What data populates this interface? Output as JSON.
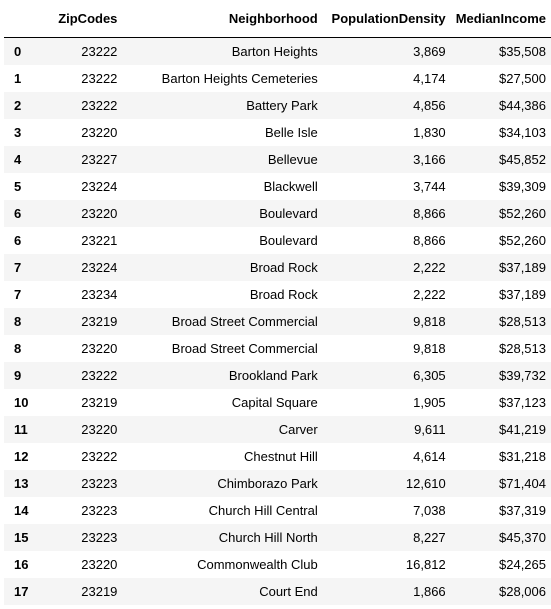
{
  "table": {
    "columns": [
      "",
      "ZipCodes",
      "Neighborhood",
      "PopulationDensity",
      "MedianIncome"
    ],
    "rows": [
      {
        "index": "0",
        "zip": "23222",
        "neighborhood": "Barton Heights",
        "density": "3,869",
        "income": "$35,508"
      },
      {
        "index": "1",
        "zip": "23222",
        "neighborhood": "Barton Heights Cemeteries",
        "density": "4,174",
        "income": "$27,500"
      },
      {
        "index": "2",
        "zip": "23222",
        "neighborhood": "Battery Park",
        "density": "4,856",
        "income": "$44,386"
      },
      {
        "index": "3",
        "zip": "23220",
        "neighborhood": "Belle Isle",
        "density": "1,830",
        "income": "$34,103"
      },
      {
        "index": "4",
        "zip": "23227",
        "neighborhood": "Bellevue",
        "density": "3,166",
        "income": "$45,852"
      },
      {
        "index": "5",
        "zip": "23224",
        "neighborhood": "Blackwell",
        "density": "3,744",
        "income": "$39,309"
      },
      {
        "index": "6",
        "zip": "23220",
        "neighborhood": "Boulevard",
        "density": "8,866",
        "income": "$52,260"
      },
      {
        "index": "6",
        "zip": "23221",
        "neighborhood": "Boulevard",
        "density": "8,866",
        "income": "$52,260"
      },
      {
        "index": "7",
        "zip": "23224",
        "neighborhood": "Broad Rock",
        "density": "2,222",
        "income": "$37,189"
      },
      {
        "index": "7",
        "zip": "23234",
        "neighborhood": "Broad Rock",
        "density": "2,222",
        "income": "$37,189"
      },
      {
        "index": "8",
        "zip": "23219",
        "neighborhood": "Broad Street Commercial",
        "density": "9,818",
        "income": "$28,513"
      },
      {
        "index": "8",
        "zip": "23220",
        "neighborhood": "Broad Street Commercial",
        "density": "9,818",
        "income": "$28,513"
      },
      {
        "index": "9",
        "zip": "23222",
        "neighborhood": "Brookland Park",
        "density": "6,305",
        "income": "$39,732"
      },
      {
        "index": "10",
        "zip": "23219",
        "neighborhood": "Capital Square",
        "density": "1,905",
        "income": "$37,123"
      },
      {
        "index": "11",
        "zip": "23220",
        "neighborhood": "Carver",
        "density": "9,611",
        "income": "$41,219"
      },
      {
        "index": "12",
        "zip": "23222",
        "neighborhood": "Chestnut Hill",
        "density": "4,614",
        "income": "$31,218"
      },
      {
        "index": "13",
        "zip": "23223",
        "neighborhood": "Chimborazo Park",
        "density": "12,610",
        "income": "$71,404"
      },
      {
        "index": "14",
        "zip": "23223",
        "neighborhood": "Church Hill Central",
        "density": "7,038",
        "income": "$37,319"
      },
      {
        "index": "15",
        "zip": "23223",
        "neighborhood": "Church Hill North",
        "density": "8,227",
        "income": "$45,370"
      },
      {
        "index": "16",
        "zip": "23220",
        "neighborhood": "Commonwealth Club",
        "density": "16,812",
        "income": "$24,265"
      },
      {
        "index": "17",
        "zip": "23219",
        "neighborhood": "Court End",
        "density": "1,866",
        "income": "$28,006"
      }
    ]
  }
}
